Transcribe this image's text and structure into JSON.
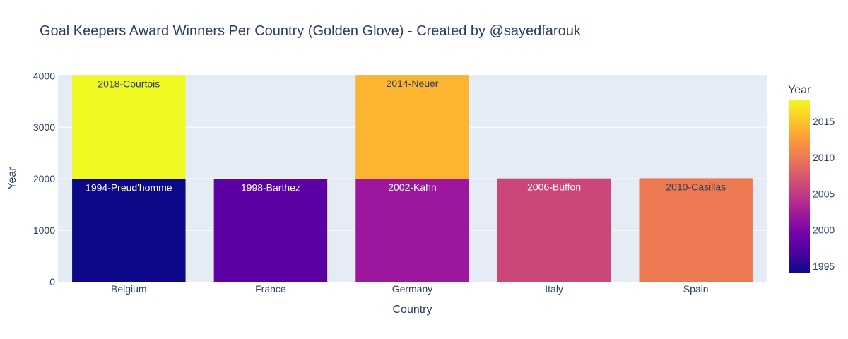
{
  "chart_data": {
    "type": "bar",
    "title": "Goal Keepers Award Winners Per Country (Golden Glove) - Created by @sayedfarouk",
    "xlabel": "Country",
    "ylabel": "Year",
    "categories": [
      "Belgium",
      "France",
      "Germany",
      "Italy",
      "Spain"
    ],
    "ylim": [
      0,
      4000
    ],
    "yticks": [
      0,
      1000,
      2000,
      3000,
      4000
    ],
    "barmode": "stack",
    "bars": [
      {
        "category": "Belgium",
        "value": 1994,
        "label": "1994-Preud'homme"
      },
      {
        "category": "Belgium",
        "value": 2018,
        "label": "2018-Courtois"
      },
      {
        "category": "France",
        "value": 1998,
        "label": "1998-Barthez"
      },
      {
        "category": "Germany",
        "value": 2002,
        "label": "2002-Kahn"
      },
      {
        "category": "Germany",
        "value": 2014,
        "label": "2014-Neuer"
      },
      {
        "category": "Italy",
        "value": 2006,
        "label": "2006-Buffon"
      },
      {
        "category": "Spain",
        "value": 2010,
        "label": "2010-Casillas"
      }
    ],
    "colorbar": {
      "title": "Year",
      "range": [
        1994,
        2018
      ],
      "ticks": [
        1995,
        2000,
        2005,
        2010,
        2015
      ],
      "colorscale": "plasma"
    },
    "colors": {
      "plot_bg": "#e5ecf6",
      "grid": "#ffffff",
      "text": "#2a3f5f"
    }
  }
}
